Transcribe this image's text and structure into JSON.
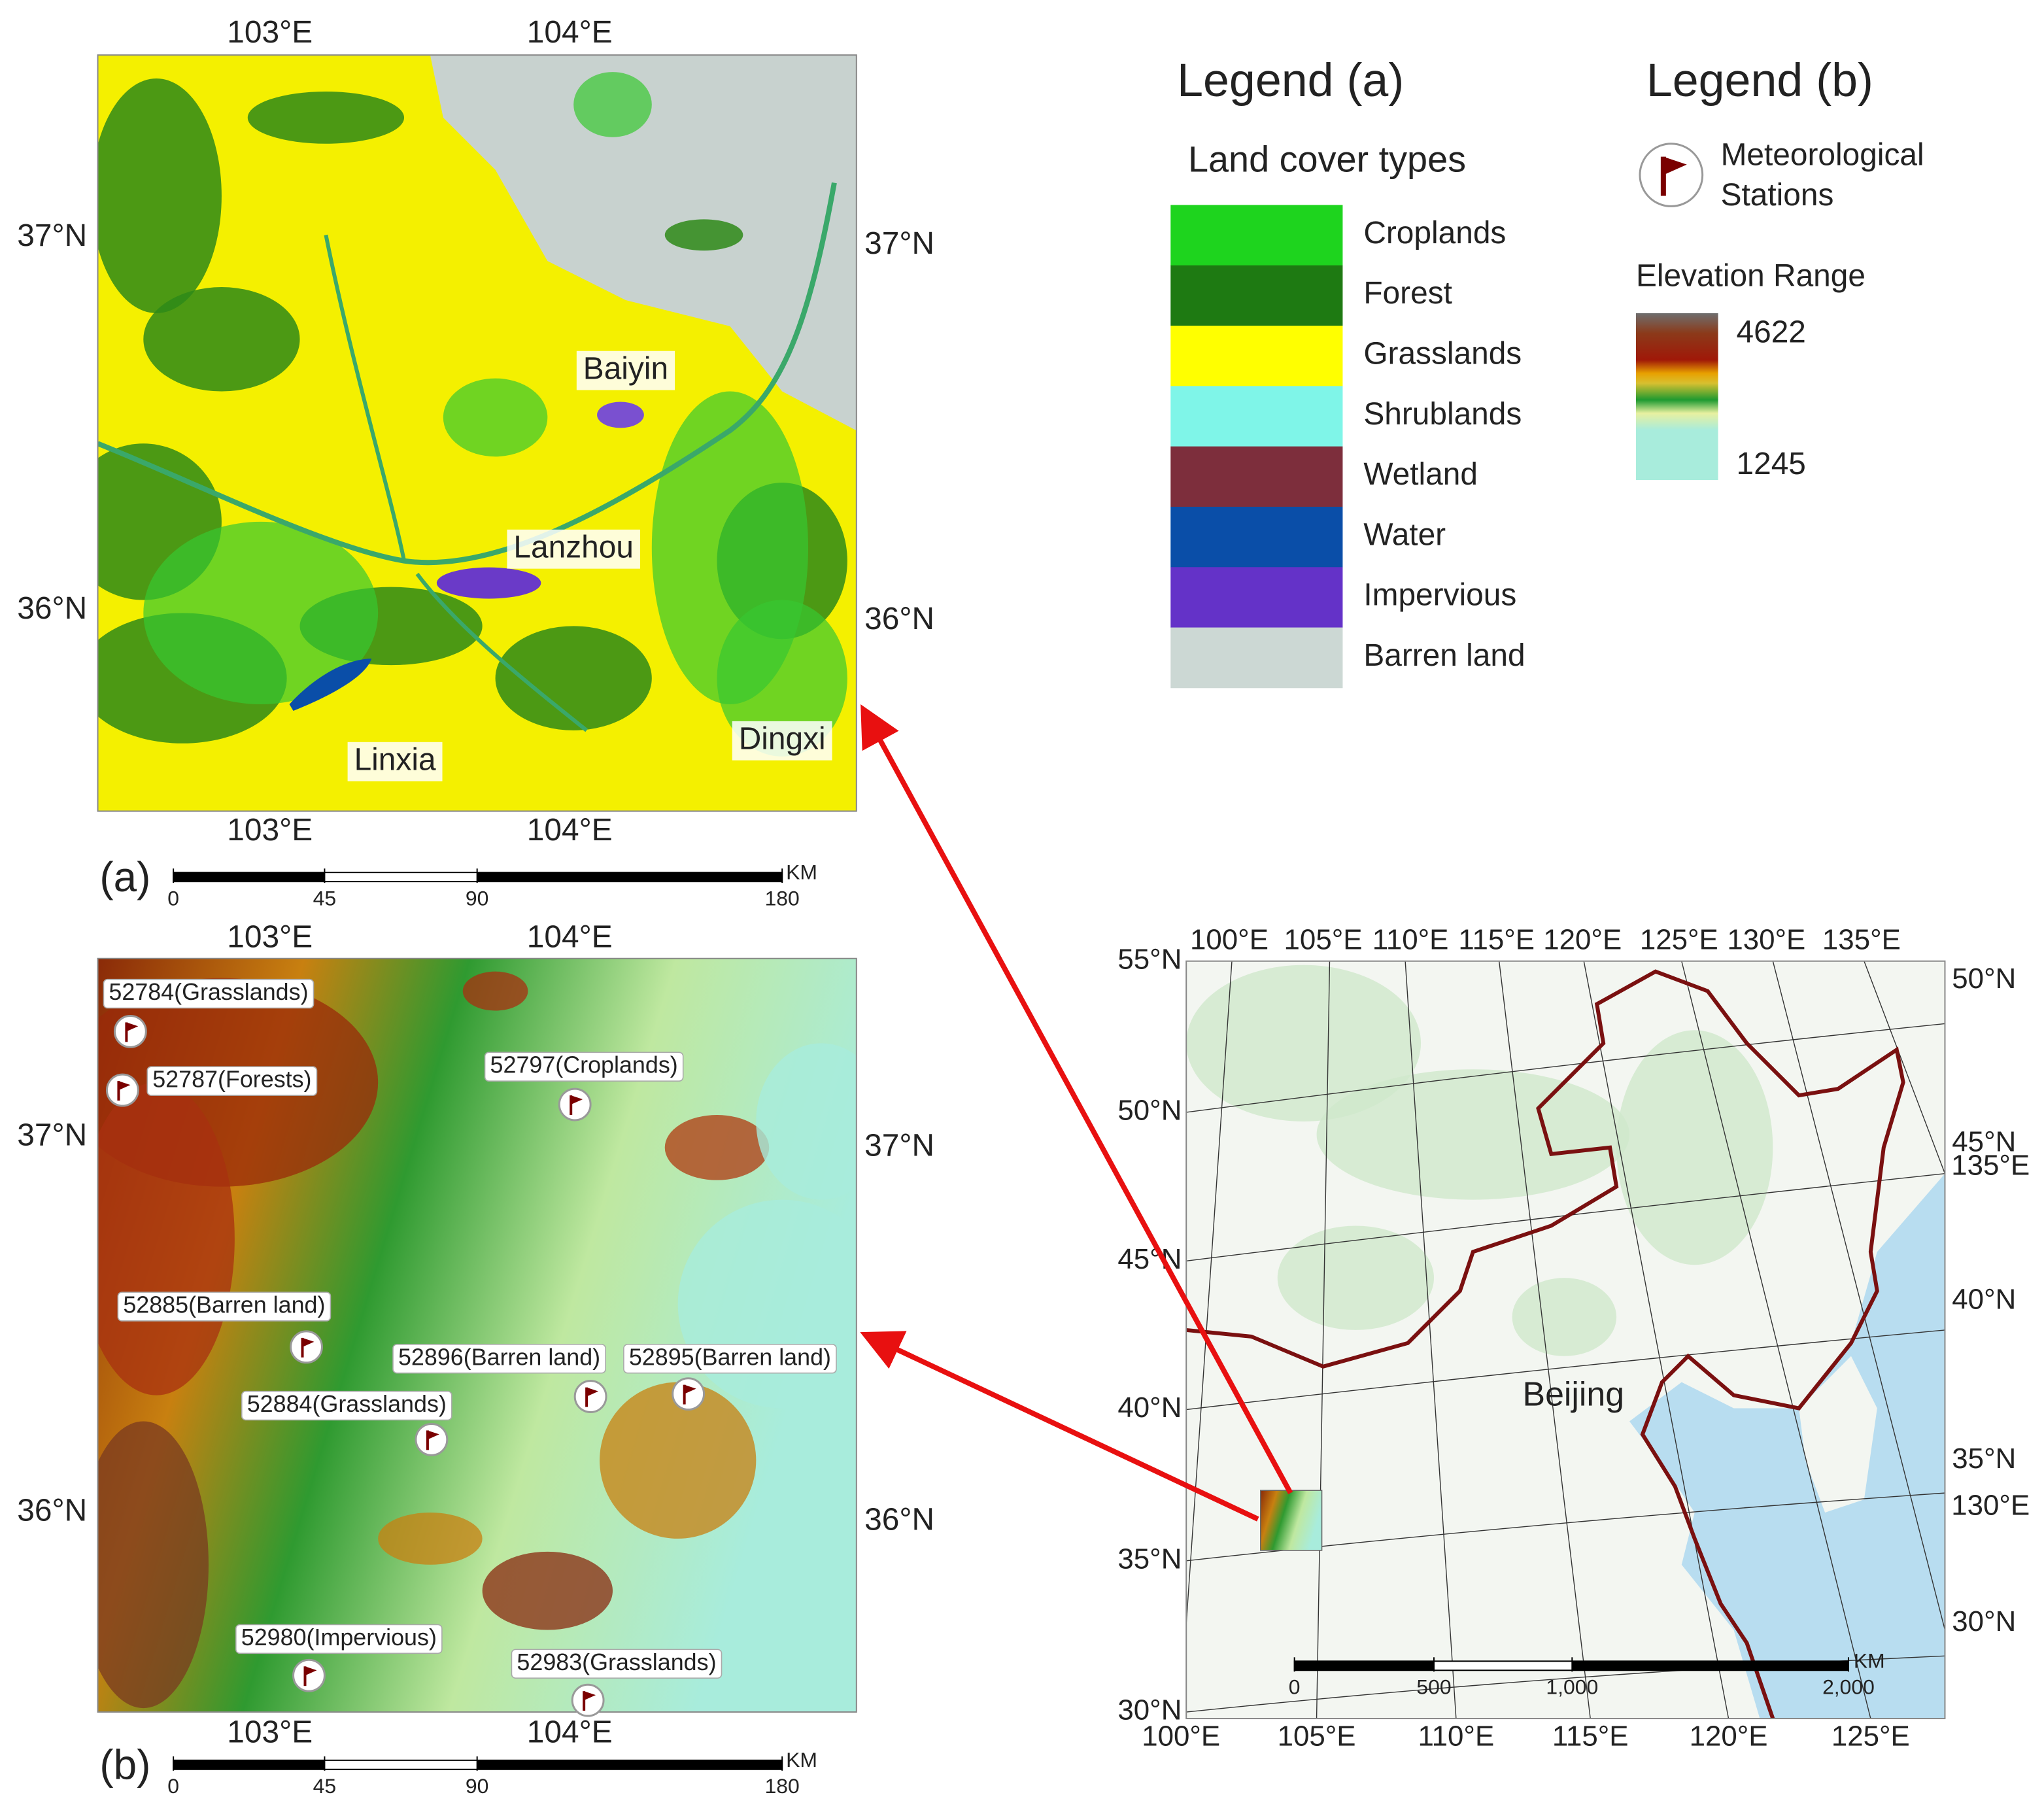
{
  "panel_a": {
    "label": "(a)",
    "top_lon": [
      "103°E",
      "104°E"
    ],
    "bottom_lon": [
      "103°E",
      "104°E"
    ],
    "left_lat": [
      "37°N",
      "36°N"
    ],
    "right_lat": [
      "37°N",
      "36°N"
    ],
    "places": [
      "Baiyin",
      "Lanzhou",
      "Linxia",
      "Dingxi"
    ],
    "scale": {
      "unit": "KM",
      "ticks": [
        "0",
        "45",
        "90",
        "180"
      ]
    }
  },
  "panel_b": {
    "label": "(b)",
    "top_lon": [
      "103°E",
      "104°E"
    ],
    "bottom_lon": [
      "103°E",
      "104°E"
    ],
    "left_lat": [
      "37°N",
      "36°N"
    ],
    "right_lat": [
      "37°N",
      "36°N"
    ],
    "stations": [
      "52784(Grasslands)",
      "52787(Forests)",
      "52797(Croplands)",
      "52885(Barren land)",
      "52896(Barren land)",
      "52895(Barren land)",
      "52884(Grasslands)",
      "52980(Impervious)",
      "52983(Grasslands)"
    ],
    "scale": {
      "unit": "KM",
      "ticks": [
        "0",
        "45",
        "90",
        "180"
      ]
    }
  },
  "legend_a": {
    "title": "Legend (a)",
    "subtitle": "Land cover types",
    "classes": [
      {
        "name": "Croplands",
        "color": "#1ed41e"
      },
      {
        "name": "Forest",
        "color": "#1e7a12"
      },
      {
        "name": "Grasslands",
        "color": "#ffff00"
      },
      {
        "name": "Shrublands",
        "color": "#7ff5e8"
      },
      {
        "name": "Wetland",
        "color": "#7d2e3c"
      },
      {
        "name": "Water",
        "color": "#0a4ea8"
      },
      {
        "name": "Impervious",
        "color": "#6432c8"
      },
      {
        "name": "Barren land",
        "color": "#ccd8d4"
      }
    ]
  },
  "legend_b": {
    "title": "Legend (b)",
    "station_label": [
      "Meteorological",
      "Stations"
    ],
    "elevation_title": "Elevation Range",
    "elevation_max": 4622,
    "elevation_min": 1245
  },
  "overview": {
    "top_lon": [
      "100°E",
      "105°E",
      "110°E",
      "115°E",
      "120°E",
      "125°E",
      "130°E",
      "135°E"
    ],
    "bottom_lon": [
      "100°E",
      "105°E",
      "110°E",
      "115°E",
      "120°E",
      "125°E"
    ],
    "left_lat": [
      "55°N",
      "50°N",
      "45°N",
      "40°N",
      "35°N",
      "30°N"
    ],
    "right_lat": [
      "50°N",
      "45°N",
      "40°N",
      "35°N",
      "30°N"
    ],
    "right_lon": [
      "135°E",
      "130°E"
    ],
    "city": "Beijing",
    "scale": {
      "unit": "KM",
      "ticks": [
        "0",
        "500",
        "1,000",
        "2,000"
      ]
    }
  }
}
